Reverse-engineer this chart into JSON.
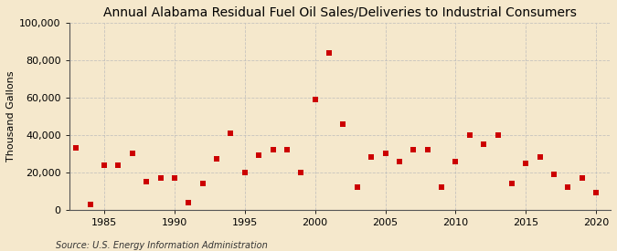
{
  "title": "Annual Alabama Residual Fuel Oil Sales/Deliveries to Industrial Consumers",
  "ylabel": "Thousand Gallons",
  "source": "Source: U.S. Energy Information Administration",
  "years": [
    1983,
    1984,
    1985,
    1986,
    1987,
    1988,
    1989,
    1990,
    1991,
    1992,
    1993,
    1994,
    1995,
    1996,
    1997,
    1998,
    1999,
    2000,
    2001,
    2002,
    2003,
    2004,
    2005,
    2006,
    2007,
    2008,
    2009,
    2010,
    2011,
    2012,
    2013,
    2014,
    2015,
    2016,
    2017,
    2018,
    2019,
    2020
  ],
  "values": [
    33000,
    3000,
    24000,
    24000,
    30000,
    15000,
    17000,
    17000,
    4000,
    14000,
    27000,
    41000,
    20000,
    29000,
    32000,
    32000,
    20000,
    59000,
    84000,
    46000,
    12000,
    28000,
    30000,
    26000,
    32000,
    32000,
    12000,
    26000,
    40000,
    35000,
    40000,
    14000,
    25000,
    28000,
    19000,
    12000,
    17000,
    9000
  ],
  "marker_color": "#cc0000",
  "marker_size": 4,
  "background_color": "#f5e8cc",
  "grid_color": "#bbbbbb",
  "xlim": [
    1982.5,
    2021
  ],
  "ylim": [
    0,
    100000
  ],
  "yticks": [
    0,
    20000,
    40000,
    60000,
    80000,
    100000
  ],
  "ytick_labels": [
    "0",
    "20,000",
    "40,000",
    "60,000",
    "80,000",
    "100,000"
  ],
  "xticks": [
    1985,
    1990,
    1995,
    2000,
    2005,
    2010,
    2015,
    2020
  ],
  "title_fontsize": 10,
  "label_fontsize": 8,
  "tick_fontsize": 8,
  "source_fontsize": 7
}
